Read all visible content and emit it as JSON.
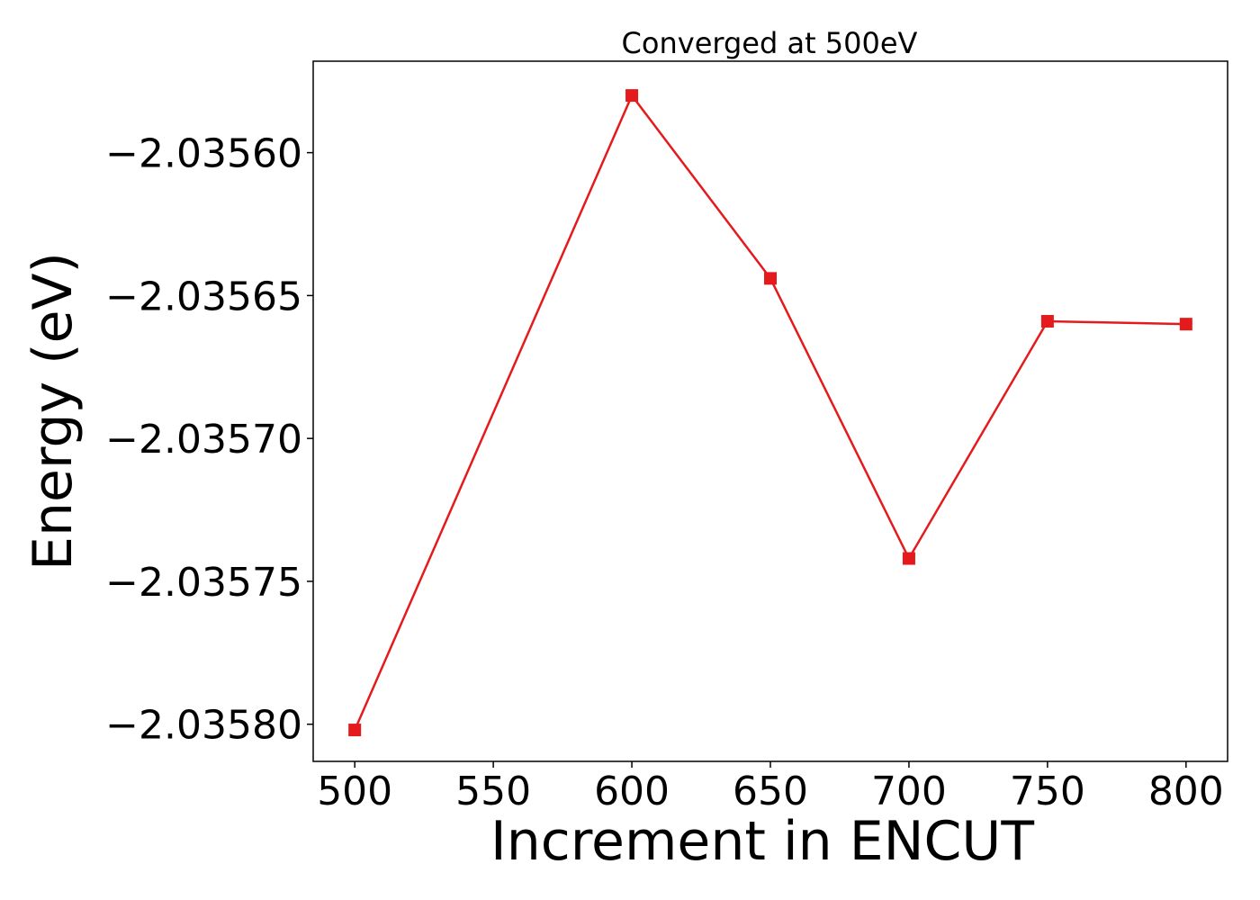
{
  "chart_data": {
    "type": "line",
    "title": "Converged at 500eV",
    "xlabel": "Increment in ENCUT",
    "ylabel": "Energy (eV)",
    "x": [
      500,
      600,
      650,
      700,
      750,
      800
    ],
    "series": [
      {
        "values": [
          -2.035802,
          -2.03558,
          -2.035644,
          -2.035742,
          -2.035659,
          -2.03566
        ],
        "color": "#e41a1c",
        "marker": "square"
      }
    ],
    "xlim": [
      485,
      815
    ],
    "ylim": [
      -2.035813,
      -2.035568
    ],
    "xticks": [
      500,
      550,
      600,
      650,
      700,
      750,
      800
    ],
    "xtick_labels": [
      "500",
      "550",
      "600",
      "650",
      "700",
      "750",
      "800"
    ],
    "yticks": [
      -2.0356,
      -2.03565,
      -2.0357,
      -2.03575,
      -2.0358
    ],
    "ytick_labels": [
      "−2.03560",
      "−2.03565",
      "−2.03570",
      "−2.03575",
      "−2.03580"
    ],
    "grid": false,
    "legend": false
  }
}
